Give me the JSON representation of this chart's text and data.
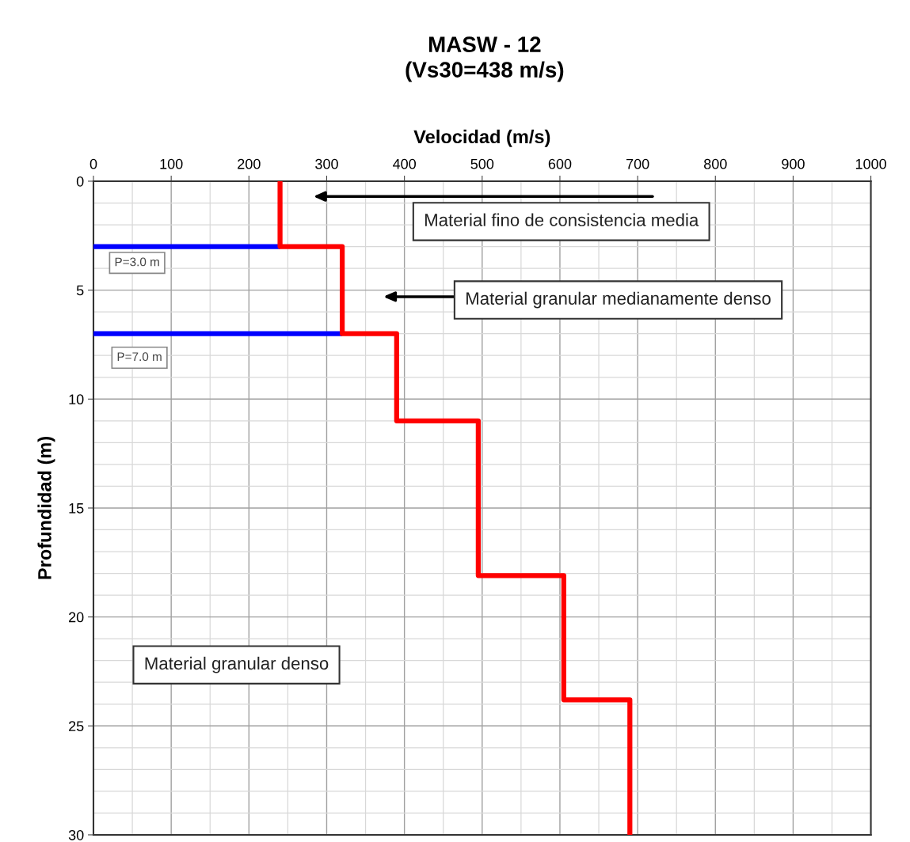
{
  "chart_data": {
    "type": "line",
    "title": "MASW - 12\n(Vs30=438 m/s)",
    "xlabel": "Velocidad (m/s)",
    "ylabel": "Profundidad (m)",
    "series": [
      {
        "color": "#ff0000",
        "x": [
          240,
          240,
          320,
          320,
          390,
          390,
          495,
          495,
          605,
          605,
          690,
          690
        ],
        "values": [
          0,
          3,
          3,
          7,
          7,
          11,
          11,
          18.1,
          18.1,
          23.8,
          23.8,
          30
        ]
      },
      {
        "color": "#0000ff",
        "x": [
          0,
          240
        ],
        "values": [
          3,
          3
        ]
      },
      {
        "color": "#0000ff",
        "x": [
          0,
          320
        ],
        "values": [
          7,
          7
        ]
      }
    ],
    "annotations": [
      "Material fino de consistencia media",
      "Material granular medianamente denso",
      "P=3.0 m",
      "P=7.0 m",
      "Material granular denso"
    ],
    "xlim": [
      0,
      1000
    ],
    "xticks": [
      0,
      100,
      200,
      300,
      400,
      500,
      600,
      700,
      800,
      900,
      1000
    ],
    "ylim": [
      30,
      0
    ],
    "yticks": [
      0,
      5,
      10,
      15,
      20,
      25,
      30
    ],
    "grid": true,
    "marker": "none",
    "line_style": "solid"
  }
}
